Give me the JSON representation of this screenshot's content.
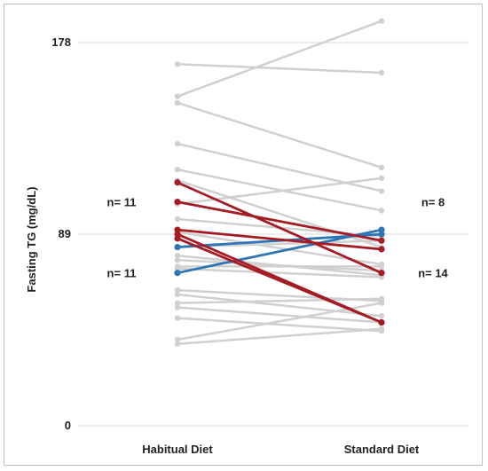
{
  "chart_data": {
    "type": "line",
    "title": "",
    "xlabel": "",
    "ylabel": "Fasting TG (mg/dL)",
    "categories": [
      "Habitual Diet",
      "Standard Diet"
    ],
    "ylim": [
      0,
      178
    ],
    "y_ticks": [
      "0",
      "89",
      "178"
    ],
    "grid": "horizontal",
    "annotations": [
      {
        "text": "n= 11",
        "side": "left",
        "y": 104
      },
      {
        "text": "n= 11",
        "side": "left",
        "y": 71
      },
      {
        "text": "n= 8",
        "side": "right",
        "y": 104
      },
      {
        "text": "n= 14",
        "side": "right",
        "y": 71
      }
    ],
    "series": [
      {
        "group": "gray",
        "values": [
          168,
          164
        ]
      },
      {
        "group": "gray",
        "values": [
          153,
          188
        ]
      },
      {
        "group": "gray",
        "values": [
          150,
          120
        ]
      },
      {
        "group": "gray",
        "values": [
          131,
          109
        ]
      },
      {
        "group": "gray",
        "values": [
          119,
          100
        ]
      },
      {
        "group": "gray",
        "values": [
          114,
          83
        ]
      },
      {
        "group": "gray",
        "values": [
          103,
          115
        ]
      },
      {
        "group": "gray",
        "values": [
          96,
          88
        ]
      },
      {
        "group": "gray",
        "values": [
          90,
          75
        ]
      },
      {
        "group": "gray",
        "values": [
          83,
          86
        ]
      },
      {
        "group": "gray",
        "values": [
          79,
          70
        ]
      },
      {
        "group": "gray",
        "values": [
          77,
          72
        ]
      },
      {
        "group": "gray",
        "values": [
          74,
          74
        ]
      },
      {
        "group": "gray",
        "values": [
          73,
          69
        ]
      },
      {
        "group": "gray",
        "values": [
          63,
          58
        ]
      },
      {
        "group": "gray",
        "values": [
          61,
          51
        ]
      },
      {
        "group": "gray",
        "values": [
          57,
          59
        ]
      },
      {
        "group": "gray",
        "values": [
          55,
          48
        ]
      },
      {
        "group": "gray",
        "values": [
          50,
          44
        ]
      },
      {
        "group": "gray",
        "values": [
          40,
          57
        ]
      },
      {
        "group": "gray",
        "values": [
          38,
          45
        ]
      },
      {
        "group": "blue",
        "values": [
          83,
          89
        ]
      },
      {
        "group": "blue",
        "values": [
          71,
          91
        ]
      },
      {
        "group": "red",
        "values": [
          113,
          71
        ]
      },
      {
        "group": "red",
        "values": [
          104,
          86
        ]
      },
      {
        "group": "red",
        "values": [
          91,
          82
        ]
      },
      {
        "group": "red",
        "values": [
          89,
          48
        ]
      },
      {
        "group": "red",
        "values": [
          87,
          48
        ]
      }
    ],
    "colors": {
      "gray": "#d0d0d0",
      "blue": "#2e75b6",
      "red": "#a51c24",
      "grid": "#d9d9d9"
    }
  }
}
